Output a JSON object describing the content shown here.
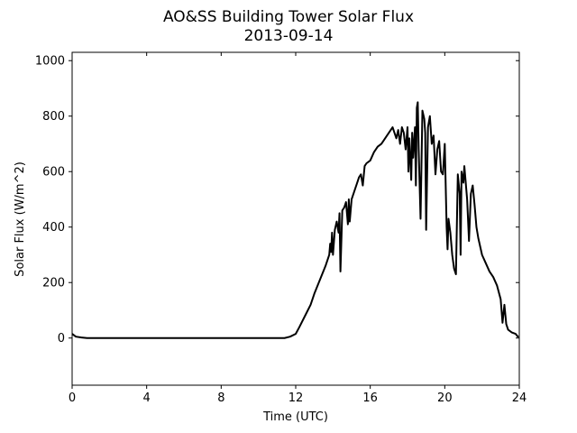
{
  "chart_data": {
    "type": "line",
    "title": "AO&SS Building Tower Solar Flux",
    "subtitle": "2013-09-14",
    "xlabel": "Time (UTC)",
    "ylabel": "Solar Flux (W/m^2)",
    "xlim": [
      0,
      24
    ],
    "ylim": [
      -170,
      1030
    ],
    "xticks": [
      0,
      4,
      8,
      12,
      16,
      20,
      24
    ],
    "yticks": [
      0,
      200,
      400,
      600,
      800,
      1000
    ],
    "grid": false,
    "legend": "none",
    "colors": {
      "line": "#000000"
    },
    "series": [
      {
        "x": [
          0,
          0.2,
          0.5,
          0.8,
          2,
          4,
          6,
          8,
          10,
          11,
          11.4,
          11.7,
          12.0,
          12.2,
          12.5,
          12.8,
          13.0,
          13.3,
          13.6,
          13.8,
          13.85,
          13.9,
          13.95,
          14.0,
          14.1,
          14.2,
          14.3,
          14.35,
          14.4,
          14.5,
          14.6,
          14.7,
          14.8,
          14.85,
          14.9,
          15.0,
          15.1,
          15.2,
          15.3,
          15.4,
          15.5,
          15.6,
          15.7,
          15.8,
          16.0,
          16.2,
          16.4,
          16.6,
          16.8,
          17.0,
          17.2,
          17.4,
          17.5,
          17.6,
          17.7,
          17.8,
          17.9,
          18.0,
          18.05,
          18.1,
          18.2,
          18.25,
          18.3,
          18.4,
          18.45,
          18.5,
          18.55,
          18.6,
          18.7,
          18.8,
          18.9,
          18.95,
          19.0,
          19.1,
          19.2,
          19.3,
          19.4,
          19.5,
          19.6,
          19.7,
          19.8,
          19.9,
          20.0,
          20.1,
          20.15,
          20.2,
          20.3,
          20.4,
          20.5,
          20.6,
          20.7,
          20.8,
          20.85,
          20.9,
          21.0,
          21.05,
          21.1,
          21.2,
          21.3,
          21.4,
          21.5,
          21.6,
          21.7,
          21.8,
          21.9,
          22.0,
          22.2,
          22.4,
          22.6,
          22.8,
          23.0,
          23.1,
          23.2,
          23.3,
          23.4,
          23.6,
          23.8,
          23.95
        ],
        "y": [
          15,
          5,
          2,
          0,
          0,
          0,
          0,
          0,
          0,
          0,
          0,
          5,
          15,
          40,
          80,
          120,
          160,
          210,
          260,
          300,
          340,
          310,
          380,
          300,
          390,
          420,
          380,
          450,
          240,
          460,
          470,
          490,
          410,
          500,
          420,
          500,
          520,
          540,
          560,
          580,
          590,
          550,
          620,
          630,
          640,
          670,
          690,
          700,
          720,
          740,
          760,
          720,
          750,
          700,
          760,
          740,
          680,
          760,
          600,
          720,
          570,
          740,
          650,
          760,
          550,
          830,
          850,
          680,
          430,
          820,
          790,
          740,
          390,
          760,
          800,
          700,
          730,
          590,
          680,
          710,
          600,
          590,
          700,
          400,
          320,
          430,
          380,
          300,
          250,
          230,
          590,
          520,
          300,
          600,
          560,
          620,
          580,
          500,
          350,
          520,
          550,
          480,
          400,
          360,
          330,
          300,
          270,
          240,
          220,
          190,
          140,
          55,
          120,
          50,
          30,
          20,
          15,
          3
        ]
      }
    ]
  }
}
